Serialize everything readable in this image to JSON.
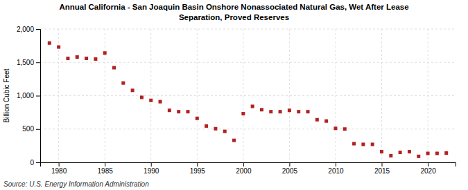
{
  "chart_data": {
    "type": "scatter",
    "title": "Annual California - San Joaquin Basin Onshore Nonassociated Natural Gas, Wet After Lease\nSeparation, Proved Reserves",
    "ylabel": "Billion Cubic Feet",
    "annotations": [
      "Source: U.S. Energy Information Administration"
    ],
    "x": [
      1979,
      1980,
      1981,
      1982,
      1983,
      1984,
      1985,
      1986,
      1987,
      1988,
      1989,
      1990,
      1991,
      1992,
      1993,
      1994,
      1995,
      1996,
      1997,
      1998,
      1999,
      2000,
      2001,
      2002,
      2003,
      2004,
      2005,
      2006,
      2007,
      2008,
      2009,
      2010,
      2011,
      2012,
      2013,
      2014,
      2015,
      2016,
      2017,
      2018,
      2019,
      2020,
      2021,
      2022
    ],
    "values": [
      1790,
      1730,
      1560,
      1580,
      1560,
      1550,
      1640,
      1420,
      1190,
      1080,
      975,
      930,
      910,
      780,
      760,
      760,
      660,
      545,
      505,
      465,
      330,
      730,
      840,
      790,
      760,
      760,
      780,
      760,
      760,
      640,
      620,
      510,
      500,
      280,
      270,
      270,
      160,
      100,
      150,
      160,
      90,
      135,
      135,
      140
    ],
    "color": "#b22222",
    "marker": "square",
    "xlim": [
      1978,
      2023
    ],
    "xticks": [
      1980,
      1985,
      1990,
      1995,
      2000,
      2005,
      2010,
      2015,
      2020
    ],
    "ylim": [
      0,
      2000
    ],
    "yticks": [
      0,
      500,
      {
        "value": 1000,
        "label": "1,000"
      },
      {
        "value": 1500,
        "label": "1,500"
      },
      {
        "value": 2000,
        "label": "2,000"
      }
    ],
    "grid": true
  }
}
